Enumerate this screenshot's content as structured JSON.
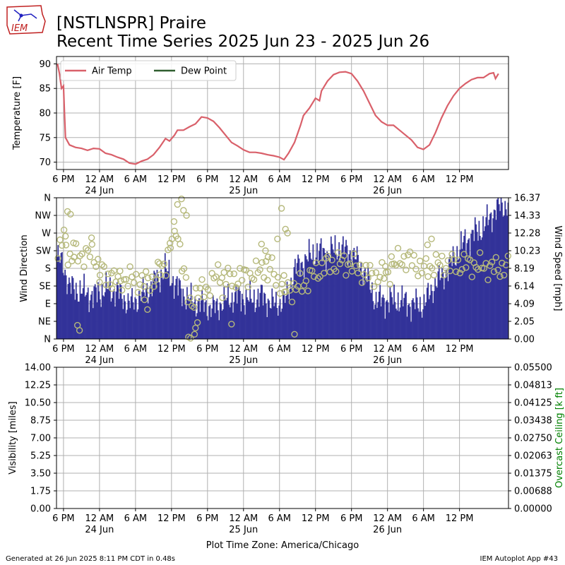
{
  "header": {
    "title_line1": "[NSTLNSPR] Praire",
    "title_line2": "Recent Time Series 2025 Jun 23 - 2025 Jun 26",
    "logo_text": "IEM"
  },
  "footer": {
    "generated": "Generated at 26 Jun 2025 8:11 PM CDT in 0.48s",
    "app": "IEM Autoplot App #43",
    "timezone_label": "Plot Time Zone: America/Chicago"
  },
  "x_axis": {
    "range": [
      "2025-06-23 16:50",
      "2025-06-26 20:10"
    ],
    "ticks": [
      {
        "time": "2025-06-23 18:00",
        "label": "6 PM",
        "sublabel": ""
      },
      {
        "time": "2025-06-24 00:00",
        "label": "12 AM",
        "sublabel": "24 Jun"
      },
      {
        "time": "2025-06-24 06:00",
        "label": "6 AM",
        "sublabel": ""
      },
      {
        "time": "2025-06-24 12:00",
        "label": "12 PM",
        "sublabel": ""
      },
      {
        "time": "2025-06-24 18:00",
        "label": "6 PM",
        "sublabel": ""
      },
      {
        "time": "2025-06-25 00:00",
        "label": "12 AM",
        "sublabel": "25 Jun"
      },
      {
        "time": "2025-06-25 06:00",
        "label": "6 AM",
        "sublabel": ""
      },
      {
        "time": "2025-06-25 12:00",
        "label": "12 PM",
        "sublabel": ""
      },
      {
        "time": "2025-06-25 18:00",
        "label": "6 PM",
        "sublabel": ""
      },
      {
        "time": "2025-06-26 00:00",
        "label": "12 AM",
        "sublabel": "26 Jun"
      },
      {
        "time": "2025-06-26 06:00",
        "label": "6 AM",
        "sublabel": ""
      },
      {
        "time": "2025-06-26 12:00",
        "label": "12 PM",
        "sublabel": ""
      }
    ]
  },
  "chart_data": [
    {
      "type": "line",
      "ylabel": "Temperature [F]",
      "ylim": [
        68.5,
        91.5
      ],
      "yticks": [
        70,
        75,
        80,
        85,
        90
      ],
      "grid": true,
      "legend": {
        "placement": "top-left",
        "entries": [
          "Air Temp",
          "Dew Point"
        ]
      },
      "series": [
        {
          "name": "Air Temp",
          "color": "#d9606a",
          "points": [
            [
              "2025-06-23 17:00",
              90.0
            ],
            [
              "2025-06-23 17:20",
              88.0
            ],
            [
              "2025-06-23 17:40",
              85.0
            ],
            [
              "2025-06-23 18:00",
              85.5
            ],
            [
              "2025-06-23 18:10",
              80.0
            ],
            [
              "2025-06-23 18:20",
              75.0
            ],
            [
              "2025-06-23 19:00",
              73.5
            ],
            [
              "2025-06-23 20:00",
              73.0
            ],
            [
              "2025-06-23 21:00",
              72.8
            ],
            [
              "2025-06-23 22:00",
              72.4
            ],
            [
              "2025-06-23 23:00",
              72.8
            ],
            [
              "2025-06-24 00:00",
              72.7
            ],
            [
              "2025-06-24 01:00",
              71.8
            ],
            [
              "2025-06-24 02:00",
              71.5
            ],
            [
              "2025-06-24 03:00",
              71.0
            ],
            [
              "2025-06-24 04:00",
              70.6
            ],
            [
              "2025-06-24 05:00",
              69.8
            ],
            [
              "2025-06-24 06:00",
              69.6
            ],
            [
              "2025-06-24 07:00",
              70.2
            ],
            [
              "2025-06-24 08:00",
              70.6
            ],
            [
              "2025-06-24 09:00",
              71.5
            ],
            [
              "2025-06-24 10:00",
              73.0
            ],
            [
              "2025-06-24 11:00",
              74.8
            ],
            [
              "2025-06-24 11:40",
              74.3
            ],
            [
              "2025-06-24 12:30",
              75.5
            ],
            [
              "2025-06-24 13:00",
              76.5
            ],
            [
              "2025-06-24 14:00",
              76.5
            ],
            [
              "2025-06-24 15:00",
              77.2
            ],
            [
              "2025-06-24 16:00",
              77.8
            ],
            [
              "2025-06-24 17:00",
              79.2
            ],
            [
              "2025-06-24 18:00",
              79.0
            ],
            [
              "2025-06-24 19:00",
              78.3
            ],
            [
              "2025-06-24 20:00",
              77.0
            ],
            [
              "2025-06-24 21:00",
              75.5
            ],
            [
              "2025-06-24 22:00",
              74.0
            ],
            [
              "2025-06-24 23:00",
              73.3
            ],
            [
              "2025-06-25 00:00",
              72.5
            ],
            [
              "2025-06-25 01:00",
              72.0
            ],
            [
              "2025-06-25 02:00",
              72.0
            ],
            [
              "2025-06-25 03:00",
              71.8
            ],
            [
              "2025-06-25 04:00",
              71.5
            ],
            [
              "2025-06-25 05:00",
              71.3
            ],
            [
              "2025-06-25 06:00",
              71.0
            ],
            [
              "2025-06-25 06:45",
              70.5
            ],
            [
              "2025-06-25 07:30",
              71.8
            ],
            [
              "2025-06-25 08:30",
              74.0
            ],
            [
              "2025-06-25 09:30",
              77.5
            ],
            [
              "2025-06-25 10:00",
              79.5
            ],
            [
              "2025-06-25 11:00",
              81.0
            ],
            [
              "2025-06-25 12:00",
              83.0
            ],
            [
              "2025-06-25 12:40",
              82.5
            ],
            [
              "2025-06-25 13:00",
              84.5
            ],
            [
              "2025-06-25 14:00",
              86.5
            ],
            [
              "2025-06-25 15:00",
              87.8
            ],
            [
              "2025-06-25 16:00",
              88.3
            ],
            [
              "2025-06-25 17:00",
              88.4
            ],
            [
              "2025-06-25 18:00",
              88.0
            ],
            [
              "2025-06-25 19:00",
              86.5
            ],
            [
              "2025-06-25 20:00",
              84.5
            ],
            [
              "2025-06-25 21:00",
              82.0
            ],
            [
              "2025-06-25 22:00",
              79.5
            ],
            [
              "2025-06-25 23:00",
              78.2
            ],
            [
              "2025-06-26 00:00",
              77.5
            ],
            [
              "2025-06-26 01:00",
              77.5
            ],
            [
              "2025-06-26 02:00",
              76.5
            ],
            [
              "2025-06-26 03:00",
              75.5
            ],
            [
              "2025-06-26 04:00",
              74.5
            ],
            [
              "2025-06-26 05:00",
              73.0
            ],
            [
              "2025-06-26 06:00",
              72.6
            ],
            [
              "2025-06-26 07:00",
              73.5
            ],
            [
              "2025-06-26 08:00",
              76.0
            ],
            [
              "2025-06-26 09:00",
              79.0
            ],
            [
              "2025-06-26 10:00",
              81.5
            ],
            [
              "2025-06-26 11:00",
              83.5
            ],
            [
              "2025-06-26 12:00",
              85.0
            ],
            [
              "2025-06-26 13:00",
              86.0
            ],
            [
              "2025-06-26 14:00",
              86.8
            ],
            [
              "2025-06-26 15:00",
              87.2
            ],
            [
              "2025-06-26 16:00",
              87.2
            ],
            [
              "2025-06-26 17:00",
              88.0
            ],
            [
              "2025-06-26 17:40",
              88.2
            ],
            [
              "2025-06-26 18:00",
              87.0
            ],
            [
              "2025-06-26 18:30",
              88.0
            ]
          ]
        },
        {
          "name": "Dew Point",
          "color": "#2f5e2f",
          "points": []
        }
      ]
    },
    {
      "type": "bar",
      "ylabel": "Wind Direction",
      "y2label": "Wind Speed [mph]",
      "direction_ticks": [
        "N",
        "NE",
        "E",
        "SE",
        "S",
        "SW",
        "W",
        "NW",
        "N"
      ],
      "speed_ticks": [
        "0.00",
        "2.05",
        "4.09",
        "6.14",
        "8.19",
        "10.23",
        "12.28",
        "14.33",
        "16.37"
      ],
      "speed_ylim": [
        0,
        16.37
      ],
      "direction_ylim": [
        0,
        360
      ],
      "grid": true,
      "speed_color": "#333399",
      "direction_color": "#b5b87a",
      "speed_knots": [
        [
          "2025-06-23 17:00",
          9.5
        ],
        [
          "2025-06-23 18:00",
          8.5
        ],
        [
          "2025-06-23 19:00",
          6.0
        ],
        [
          "2025-06-23 21:00",
          5.5
        ],
        [
          "2025-06-23 23:00",
          5.0
        ],
        [
          "2025-06-24 01:00",
          5.8
        ],
        [
          "2025-06-24 03:00",
          5.5
        ],
        [
          "2025-06-24 05:00",
          4.0
        ],
        [
          "2025-06-24 07:00",
          5.0
        ],
        [
          "2025-06-24 09:00",
          6.5
        ],
        [
          "2025-06-24 11:00",
          8.0
        ],
        [
          "2025-06-24 13:00",
          6.0
        ],
        [
          "2025-06-24 15:00",
          4.5
        ],
        [
          "2025-06-24 17:00",
          4.0
        ],
        [
          "2025-06-24 19:00",
          3.5
        ],
        [
          "2025-06-24 21:00",
          4.5
        ],
        [
          "2025-06-24 23:00",
          5.0
        ],
        [
          "2025-06-25 01:00",
          4.5
        ],
        [
          "2025-06-25 03:00",
          5.0
        ],
        [
          "2025-06-25 05:00",
          4.0
        ],
        [
          "2025-06-25 07:00",
          4.5
        ],
        [
          "2025-06-25 08:30",
          8.0
        ],
        [
          "2025-06-25 10:00",
          9.0
        ],
        [
          "2025-06-25 12:00",
          10.0
        ],
        [
          "2025-06-25 14:00",
          10.0
        ],
        [
          "2025-06-25 16:00",
          10.5
        ],
        [
          "2025-06-25 18:00",
          10.0
        ],
        [
          "2025-06-25 20:00",
          8.0
        ],
        [
          "2025-06-25 22:00",
          4.5
        ],
        [
          "2025-06-26 00:00",
          4.5
        ],
        [
          "2025-06-26 02:00",
          4.5
        ],
        [
          "2025-06-26 04:00",
          4.0
        ],
        [
          "2025-06-26 06:00",
          4.0
        ],
        [
          "2025-06-26 08:00",
          6.5
        ],
        [
          "2025-06-26 10:00",
          8.0
        ],
        [
          "2025-06-26 12:00",
          10.5
        ],
        [
          "2025-06-26 14:00",
          12.0
        ],
        [
          "2025-06-26 16:00",
          13.0
        ],
        [
          "2025-06-26 18:00",
          15.0
        ],
        [
          "2025-06-26 19:00",
          15.5
        ]
      ],
      "direction_knots": [
        [
          "2025-06-23 17:00",
          200
        ],
        [
          "2025-06-23 18:00",
          265
        ],
        [
          "2025-06-23 19:00",
          205
        ],
        [
          "2025-06-23 21:00",
          215
        ],
        [
          "2025-06-23 23:00",
          215
        ],
        [
          "2025-06-24 01:00",
          155
        ],
        [
          "2025-06-24 03:00",
          150
        ],
        [
          "2025-06-24 05:00",
          155
        ],
        [
          "2025-06-24 07:00",
          145
        ],
        [
          "2025-06-24 09:00",
          150
        ],
        [
          "2025-06-24 11:00",
          190
        ],
        [
          "2025-06-24 12:00",
          260
        ],
        [
          "2025-06-24 13:00",
          275
        ],
        [
          "2025-06-24 15:00",
          80
        ],
        [
          "2025-06-24 16:00",
          115
        ],
        [
          "2025-06-24 18:00",
          130
        ],
        [
          "2025-06-24 20:00",
          170
        ],
        [
          "2025-06-24 22:00",
          150
        ],
        [
          "2025-06-25 00:00",
          160
        ],
        [
          "2025-06-25 02:00",
          165
        ],
        [
          "2025-06-25 04:00",
          200
        ],
        [
          "2025-06-25 06:00",
          140
        ],
        [
          "2025-06-25 08:00",
          125
        ],
        [
          "2025-06-25 10:00",
          140
        ],
        [
          "2025-06-25 12:00",
          170
        ],
        [
          "2025-06-25 14:00",
          190
        ],
        [
          "2025-06-25 16:00",
          195
        ],
        [
          "2025-06-25 18:00",
          190
        ],
        [
          "2025-06-25 20:00",
          170
        ],
        [
          "2025-06-25 22:00",
          160
        ],
        [
          "2025-06-26 00:00",
          165
        ],
        [
          "2025-06-26 02:00",
          205
        ],
        [
          "2025-06-26 04:00",
          200
        ],
        [
          "2025-06-26 06:00",
          175
        ],
        [
          "2025-06-26 08:00",
          190
        ],
        [
          "2025-06-26 10:00",
          190
        ],
        [
          "2025-06-26 12:00",
          190
        ],
        [
          "2025-06-26 14:00",
          190
        ],
        [
          "2025-06-26 16:00",
          185
        ],
        [
          "2025-06-26 18:00",
          180
        ],
        [
          "2025-06-26 19:00",
          183
        ]
      ],
      "direction_outliers": [
        [
          "2025-06-23 18:40",
          325
        ],
        [
          "2025-06-23 19:10",
          318
        ],
        [
          "2025-06-23 18:20",
          262
        ],
        [
          "2025-06-23 19:40",
          245
        ],
        [
          "2025-06-23 20:20",
          35
        ],
        [
          "2025-06-23 20:40",
          22
        ],
        [
          "2025-06-24 13:00",
          343
        ],
        [
          "2025-06-24 13:40",
          357
        ],
        [
          "2025-06-24 14:00",
          328
        ],
        [
          "2025-06-24 14:30",
          315
        ],
        [
          "2025-06-24 12:30",
          275
        ],
        [
          "2025-06-24 11:50",
          232
        ],
        [
          "2025-06-24 14:50",
          5
        ],
        [
          "2025-06-24 15:10",
          2
        ],
        [
          "2025-06-24 15:50",
          12
        ],
        [
          "2025-06-24 16:20",
          42
        ],
        [
          "2025-06-24 16:00",
          28
        ],
        [
          "2025-06-25 04:00",
          150
        ],
        [
          "2025-06-25 06:20",
          333
        ],
        [
          "2025-06-25 07:00",
          280
        ],
        [
          "2025-06-25 07:20",
          270
        ],
        [
          "2025-06-25 05:40",
          255
        ],
        [
          "2025-06-25 03:40",
          225
        ],
        [
          "2025-06-25 03:00",
          242
        ],
        [
          "2025-06-25 08:30",
          12
        ],
        [
          "2025-06-24 22:00",
          38
        ],
        [
          "2025-06-24 20:30",
          105
        ],
        [
          "2025-06-24 10:00",
          192
        ],
        [
          "2025-06-23 22:40",
          258
        ],
        [
          "2025-06-26 07:20",
          255
        ],
        [
          "2025-06-26 06:40",
          240
        ],
        [
          "2025-06-26 00:40",
          210
        ],
        [
          "2025-06-25 23:40",
          185
        ],
        [
          "2025-06-24 07:30",
          100
        ],
        [
          "2025-06-24 08:00",
          75
        ],
        [
          "2025-06-24 00:00",
          145
        ],
        [
          "2025-06-24 02:00",
          168
        ],
        [
          "2025-06-24 03:30",
          148
        ],
        [
          "2025-06-25 06:50",
          120
        ]
      ]
    },
    {
      "type": "line",
      "ylabel": "Visibility [miles]",
      "y2label": "Overcast Ceiling [k ft]",
      "y2label_color": "#008000",
      "ylim": [
        0,
        14
      ],
      "y2lim": [
        0,
        0.055
      ],
      "yticks": [
        "0.00",
        "1.75",
        "3.50",
        "5.25",
        "7.00",
        "8.75",
        "10.50",
        "12.25",
        "14.00"
      ],
      "y2ticks": [
        "0.00000",
        "0.00688",
        "0.01375",
        "0.02063",
        "0.02750",
        "0.03438",
        "0.04125",
        "0.04813",
        "0.05500"
      ],
      "grid": true,
      "series": []
    }
  ]
}
